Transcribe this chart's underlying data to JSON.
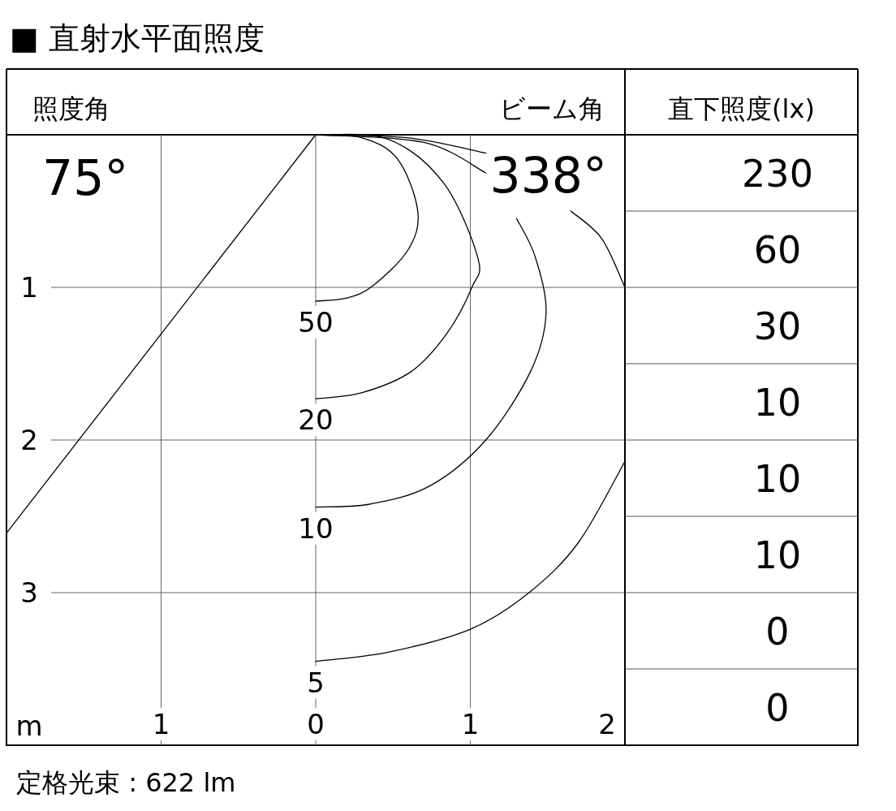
{
  "chart_data": [
    {
      "type": "line",
      "title": "■ 直射水平面照度",
      "xlabel": "m",
      "xlim": [
        -2,
        2
      ],
      "ylim": [
        4,
        0
      ],
      "xticks": [
        {
          "value": -1,
          "label": "1"
        },
        0,
        1,
        2
      ],
      "yticks": [
        1,
        2,
        3
      ],
      "grid": true,
      "annotations": [
        "照度角",
        "75°",
        "ビーム角",
        "338°",
        "定格光束 : 622 lm"
      ],
      "series": [
        {
          "name": "50",
          "color": "#000000",
          "x": [
            0,
            0.3,
            0.53,
            0.66,
            0.6,
            0.37,
            0.2,
            0
          ],
          "values": [
            0,
            0.02,
            0.16,
            0.5,
            0.75,
            0.99,
            1.07,
            1.09
          ]
        },
        {
          "name": "20",
          "color": "#000000",
          "x": [
            0,
            0.47,
            0.83,
            1.05,
            1.01,
            0.85,
            0.62,
            0.3,
            0
          ],
          "values": [
            0,
            0.03,
            0.32,
            0.81,
            1.0,
            1.3,
            1.55,
            1.69,
            1.73
          ]
        },
        {
          "name": "10",
          "color": "#000000",
          "x": [
            0,
            0.7,
            1.1,
            null,
            1.3,
            1.42,
            1.49,
            1.39,
            1.1,
            0.74,
            0.35,
            0
          ],
          "values": [
            0,
            0.05,
            0.25,
            null,
            0.55,
            0.8,
            1.17,
            1.55,
            2.0,
            2.3,
            2.42,
            2.44
          ]
        },
        {
          "name": "5",
          "color": "#000000",
          "x": [
            0,
            0.6,
            1.1,
            null,
            1.65,
            1.85,
            2,
            null,
            2,
            1.7,
            1.38,
            1.0,
            0.47,
            0
          ],
          "values": [
            0,
            0.02,
            0.12,
            null,
            0.5,
            0.68,
            1.0,
            null,
            2.14,
            2.67,
            3.0,
            3.24,
            3.39,
            3.45
          ]
        },
        {
          "color": "#000000",
          "x": [
            0,
            -2
          ],
          "values": [
            0,
            2.61
          ]
        }
      ]
    },
    {
      "type": "other",
      "title": "直下照度(lx)",
      "values": [
        230,
        60,
        30,
        10,
        10,
        10,
        0,
        0
      ],
      "data_labels": true
    }
  ]
}
